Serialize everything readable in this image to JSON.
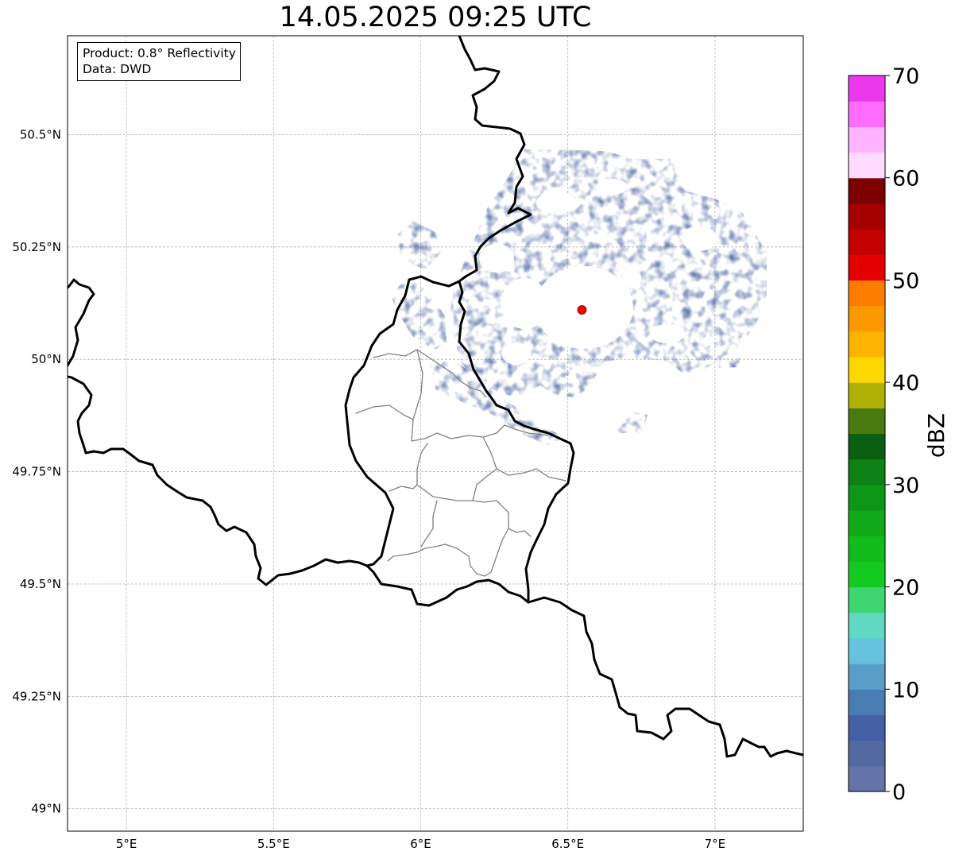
{
  "title": "14.05.2025 09:25 UTC",
  "info_box": {
    "product": "Product: 0.8° Reflectivity",
    "data": "Data: DWD"
  },
  "map": {
    "lon_range": [
      4.8,
      7.3
    ],
    "lat_range": [
      48.95,
      50.72
    ],
    "lon_ticks": [
      {
        "value": 5.0,
        "label": "5°E"
      },
      {
        "value": 5.5,
        "label": "5.5°E"
      },
      {
        "value": 6.0,
        "label": "6°E"
      },
      {
        "value": 6.5,
        "label": "6.5°E"
      },
      {
        "value": 7.0,
        "label": "7°E"
      }
    ],
    "lat_ticks": [
      {
        "value": 49.0,
        "label": "49°N"
      },
      {
        "value": 49.25,
        "label": "49.25°N"
      },
      {
        "value": 49.5,
        "label": "49.5°N"
      },
      {
        "value": 49.75,
        "label": "49.75°N"
      },
      {
        "value": 50.0,
        "label": "50°N"
      },
      {
        "value": 50.25,
        "label": "50.25°N"
      },
      {
        "value": 50.5,
        "label": "50.5°N"
      }
    ],
    "grid": true,
    "radar_site": {
      "lon": 6.548,
      "lat": 50.11,
      "color": "#ff0000"
    },
    "echo_color": "#4c65a2"
  },
  "colorbar": {
    "label": "dBZ",
    "min": 0,
    "max": 70,
    "step": 2.5,
    "tick_values": [
      0,
      10,
      20,
      30,
      40,
      50,
      60,
      70
    ],
    "colors": [
      "#6474a8",
      "#5468a2",
      "#4460a4",
      "#4a7cb4",
      "#5a9ec8",
      "#66c2de",
      "#60d8c4",
      "#3ed670",
      "#14ca20",
      "#12bc1a",
      "#10aa18",
      "#0e9616",
      "#0c8214",
      "#0a5e10",
      "#487a10",
      "#b0b006",
      "#fcd800",
      "#fcb400",
      "#fc9800",
      "#fc7c00",
      "#e40000",
      "#c40000",
      "#a40000",
      "#7c0000",
      "#ffdcff",
      "#ffb4ff",
      "#ff6cff",
      "#ec38ec"
    ]
  }
}
